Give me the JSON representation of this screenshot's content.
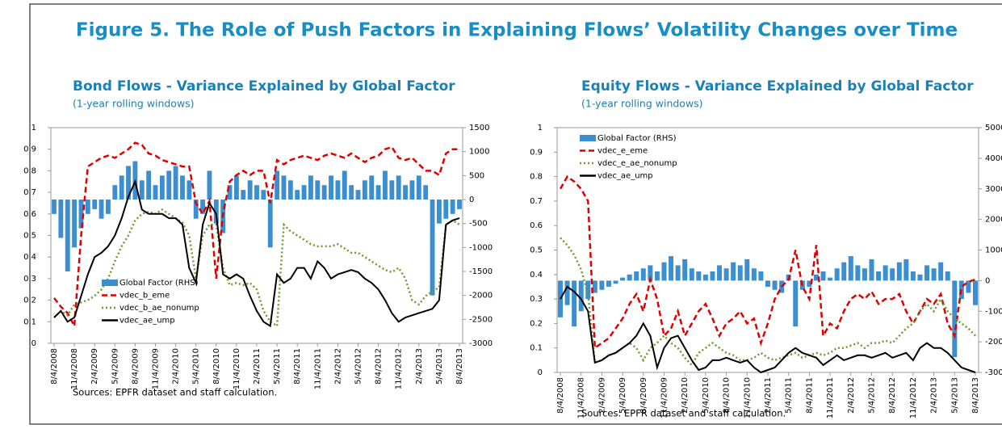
{
  "title": "Figure 5. The Role of Push Factors in Explaining Flows’ Volatility Changes over Time",
  "chart_data": [
    {
      "type": "bar_line",
      "title": "Bond Flows - Variance Explained by Global Factor",
      "subtitle": "(1-year rolling windows)",
      "note": "Sources: EPFR dataset and staff calculation.",
      "legend": "lower left",
      "categories": [
        "8/4/2008",
        null,
        null,
        "11/4/2008",
        null,
        null,
        "2/4/2009",
        null,
        null,
        "5/4/2009",
        null,
        null,
        "8/4/2009",
        null,
        null,
        "11/4/2009",
        null,
        null,
        "2/4/2010",
        null,
        null,
        "5/4/2010",
        null,
        null,
        "8/4/2010",
        null,
        null,
        "11/4/2010",
        null,
        null,
        "2/4/2011",
        null,
        null,
        "5/4/2011",
        null,
        null,
        "8/4/2011",
        null,
        null,
        "11/4/2011",
        null,
        null,
        "2/4/2012",
        null,
        null,
        "5/4/2012",
        null,
        null,
        "8/4/2012",
        null,
        null,
        "11/4/2012",
        null,
        null,
        "2/4/2013",
        null,
        null,
        "5/4/2013",
        null,
        null,
        "8/4/2013"
      ],
      "ylim": [
        0,
        1
      ],
      "yticks": [
        0,
        0.1,
        0.2,
        0.3,
        0.4,
        0.5,
        0.6,
        0.7,
        0.8,
        0.9,
        1
      ],
      "y2lim": [
        -3000,
        1500
      ],
      "y2ticks": [
        -3000,
        -2500,
        -2000,
        -1500,
        -1000,
        -500,
        0,
        500,
        1000,
        1500
      ],
      "series": [
        {
          "name": "Global Factor (RHS)",
          "type": "bar",
          "axis": "y2",
          "color": "#3b8fd1",
          "values": [
            -300,
            -800,
            -1500,
            -1000,
            -600,
            -300,
            -200,
            -400,
            -300,
            300,
            500,
            700,
            800,
            400,
            600,
            300,
            500,
            600,
            700,
            500,
            400,
            -400,
            -300,
            600,
            -500,
            -700,
            300,
            500,
            200,
            400,
            300,
            200,
            -1000,
            600,
            500,
            400,
            200,
            300,
            500,
            400,
            300,
            500,
            400,
            600,
            300,
            200,
            400,
            500,
            300,
            600,
            400,
            500,
            300,
            400,
            500,
            300,
            -2000,
            -500,
            -400,
            -300,
            -200
          ]
        },
        {
          "name": "vdec_b_eme",
          "type": "line",
          "dash": "dashed",
          "color": "#e00000",
          "values": [
            0.21,
            0.17,
            0.14,
            0.08,
            0.5,
            0.82,
            0.84,
            0.86,
            0.87,
            0.86,
            0.88,
            0.9,
            0.93,
            0.92,
            0.88,
            0.87,
            0.85,
            0.84,
            0.83,
            0.82,
            0.82,
            0.65,
            0.6,
            0.66,
            0.3,
            0.6,
            0.75,
            0.78,
            0.8,
            0.78,
            0.8,
            0.8,
            0.65,
            0.85,
            0.83,
            0.85,
            0.86,
            0.87,
            0.86,
            0.85,
            0.87,
            0.88,
            0.87,
            0.86,
            0.88,
            0.86,
            0.84,
            0.86,
            0.87,
            0.9,
            0.91,
            0.86,
            0.85,
            0.86,
            0.83,
            0.8,
            0.8,
            0.78,
            0.88,
            0.9,
            0.9
          ]
        },
        {
          "name": "vdec_b_ae_nonump",
          "type": "line",
          "dash": "dotted",
          "color": "#6b9b2c",
          "values": [
            0.12,
            0.15,
            0.13,
            0.18,
            0.19,
            0.2,
            0.22,
            0.25,
            0.3,
            0.38,
            0.45,
            0.5,
            0.57,
            0.6,
            0.61,
            0.6,
            0.62,
            0.6,
            0.58,
            0.56,
            0.5,
            0.3,
            0.5,
            0.55,
            0.55,
            0.35,
            0.27,
            0.28,
            0.27,
            0.28,
            0.25,
            0.15,
            0.1,
            0.08,
            0.55,
            0.52,
            0.5,
            0.48,
            0.46,
            0.45,
            0.45,
            0.45,
            0.46,
            0.44,
            0.42,
            0.42,
            0.4,
            0.38,
            0.36,
            0.34,
            0.33,
            0.35,
            0.3,
            0.2,
            0.18,
            0.22,
            0.24,
            0.26,
            0.55,
            0.57,
            0.55
          ]
        },
        {
          "name": "vdec_ae_ump",
          "type": "line",
          "dash": "solid",
          "color": "#000000",
          "values": [
            0.12,
            0.15,
            0.1,
            0.12,
            0.22,
            0.32,
            0.4,
            0.42,
            0.45,
            0.5,
            0.58,
            0.68,
            0.75,
            0.62,
            0.6,
            0.6,
            0.6,
            0.58,
            0.58,
            0.55,
            0.35,
            0.28,
            0.55,
            0.65,
            0.6,
            0.32,
            0.3,
            0.32,
            0.3,
            0.22,
            0.15,
            0.1,
            0.08,
            0.32,
            0.28,
            0.3,
            0.35,
            0.35,
            0.3,
            0.38,
            0.35,
            0.3,
            0.32,
            0.33,
            0.34,
            0.33,
            0.3,
            0.28,
            0.25,
            0.2,
            0.14,
            0.1,
            0.12,
            0.13,
            0.14,
            0.15,
            0.16,
            0.2,
            0.55,
            0.57,
            0.58
          ]
        }
      ]
    },
    {
      "type": "bar_line",
      "title": "Equity Flows - Variance Explained by Global Factor",
      "subtitle": "(1-year rolling windows)",
      "note": "Sources: EPFR dataset and staff calculation.",
      "legend": "upper left",
      "categories": [
        "8/4/2008",
        null,
        null,
        "11/4/2008",
        null,
        null,
        "2/4/2009",
        null,
        null,
        "5/4/2009",
        null,
        null,
        "8/4/2009",
        null,
        null,
        "11/4/2009",
        null,
        null,
        "2/4/2010",
        null,
        null,
        "5/4/2010",
        null,
        null,
        "8/4/2010",
        null,
        null,
        "11/4/2010",
        null,
        null,
        "2/4/2011",
        null,
        null,
        "5/4/2011",
        null,
        null,
        "8/4/2011",
        null,
        null,
        "11/4/2011",
        null,
        null,
        "2/4/2012",
        null,
        null,
        "5/4/2012",
        null,
        null,
        "8/4/2012",
        null,
        null,
        "11/4/2012",
        null,
        null,
        "2/4/2013",
        null,
        null,
        "5/4/2013",
        null,
        null,
        "8/4/2013"
      ],
      "ylim": [
        0,
        1
      ],
      "yticks": [
        0,
        0.1,
        0.2,
        0.3,
        0.4,
        0.5,
        0.6,
        0.7,
        0.8,
        0.9,
        1
      ],
      "y2lim": [
        -3000,
        5000
      ],
      "y2ticks": [
        -3000,
        -2000,
        -1000,
        0,
        1000,
        2000,
        3000,
        4000,
        5000
      ],
      "series": [
        {
          "name": "Global Factor (RHS)",
          "type": "bar",
          "axis": "y2",
          "color": "#3b8fd1",
          "values": [
            -1200,
            -800,
            -1500,
            -1000,
            -600,
            -400,
            -300,
            -200,
            -100,
            100,
            200,
            300,
            400,
            500,
            300,
            600,
            800,
            500,
            700,
            400,
            300,
            200,
            300,
            500,
            400,
            600,
            500,
            700,
            400,
            300,
            -200,
            -300,
            -400,
            200,
            -1500,
            -300,
            -200,
            200,
            300,
            100,
            400,
            600,
            800,
            500,
            400,
            700,
            300,
            500,
            400,
            600,
            700,
            300,
            200,
            500,
            400,
            600,
            300,
            -2500,
            -600,
            -400,
            -800
          ]
        },
        {
          "name": "vdec_e_eme",
          "type": "line",
          "dash": "dashed",
          "color": "#e00000",
          "values": [
            0.75,
            0.8,
            0.78,
            0.75,
            0.7,
            0.1,
            0.12,
            0.14,
            0.18,
            0.22,
            0.28,
            0.32,
            0.25,
            0.38,
            0.3,
            0.15,
            0.18,
            0.25,
            0.15,
            0.2,
            0.25,
            0.28,
            0.22,
            0.15,
            0.2,
            0.22,
            0.25,
            0.2,
            0.22,
            0.12,
            0.2,
            0.3,
            0.35,
            0.38,
            0.5,
            0.35,
            0.3,
            0.52,
            0.15,
            0.2,
            0.18,
            0.25,
            0.3,
            0.32,
            0.3,
            0.33,
            0.28,
            0.3,
            0.3,
            0.32,
            0.25,
            0.2,
            0.25,
            0.3,
            0.28,
            0.32,
            0.2,
            0.15,
            0.35,
            0.37,
            0.38
          ]
        },
        {
          "name": "vdec_e_ae_nonump",
          "type": "line",
          "dash": "dotted",
          "color": "#6b9b2c",
          "values": [
            0.55,
            0.52,
            0.48,
            0.42,
            0.32,
            0.04,
            0.05,
            0.07,
            0.08,
            0.1,
            0.12,
            0.1,
            0.05,
            0.1,
            0.12,
            0.15,
            0.12,
            0.1,
            0.06,
            0.03,
            0.08,
            0.1,
            0.12,
            0.1,
            0.08,
            0.07,
            0.05,
            0.05,
            0.06,
            0.08,
            0.06,
            0.05,
            0.06,
            0.07,
            0.08,
            0.06,
            0.07,
            0.08,
            0.07,
            0.08,
            0.1,
            0.1,
            0.11,
            0.12,
            0.1,
            0.12,
            0.12,
            0.13,
            0.12,
            0.15,
            0.18,
            0.2,
            0.25,
            0.28,
            0.25,
            0.3,
            0.25,
            0.22,
            0.2,
            0.18,
            0.15
          ]
        },
        {
          "name": "vdec_ae_ump",
          "type": "line",
          "dash": "solid",
          "color": "#000000",
          "values": [
            0.3,
            0.35,
            0.33,
            0.3,
            0.25,
            0.04,
            0.05,
            0.07,
            0.08,
            0.1,
            0.12,
            0.15,
            0.2,
            0.15,
            0.02,
            0.1,
            0.14,
            0.15,
            0.1,
            0.05,
            0.01,
            0.02,
            0.05,
            0.05,
            0.06,
            0.05,
            0.04,
            0.05,
            0.02,
            0,
            0.01,
            0.02,
            0.05,
            0.08,
            0.1,
            0.08,
            0.07,
            0.06,
            0.03,
            0.05,
            0.07,
            0.05,
            0.06,
            0.07,
            0.07,
            0.06,
            0.07,
            0.08,
            0.06,
            0.07,
            0.08,
            0.05,
            0.1,
            0.12,
            0.1,
            0.1,
            0.08,
            0.05,
            0.02,
            0.01,
            0
          ]
        }
      ]
    }
  ]
}
